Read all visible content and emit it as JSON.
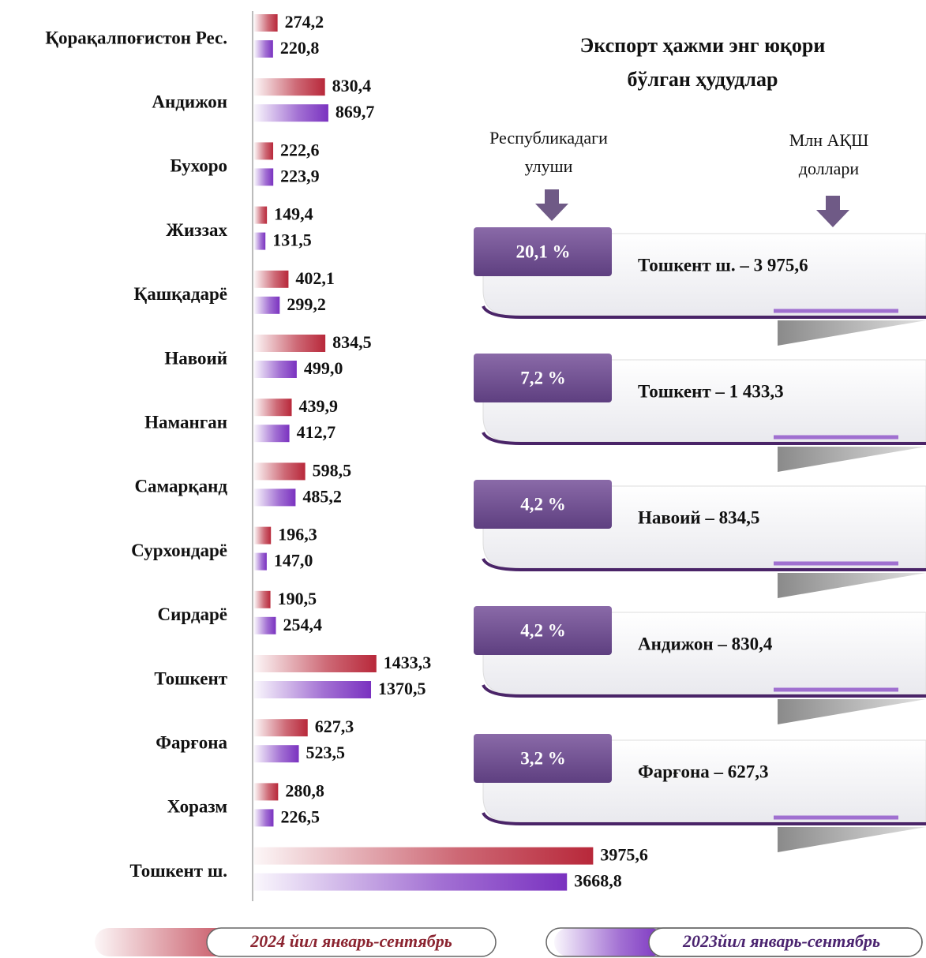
{
  "chart_data": {
    "type": "bar",
    "orientation": "horizontal",
    "categories": [
      "Қорақалпоғистон Рес.",
      "Андижон",
      "Бухоро",
      "Жиззах",
      "Қашқадарё",
      "Навоий",
      "Наманган",
      "Самарқанд",
      "Сурхондарё",
      "Сирдарё",
      "Тошкент",
      "Фарғона",
      "Хоразм",
      "Тошкент ш."
    ],
    "xlim": [
      0,
      4000
    ],
    "series": [
      {
        "name": "2024 йил январь-сентябрь",
        "color": "#b8283a",
        "values": [
          274.2,
          830.4,
          222.6,
          149.4,
          402.1,
          834.5,
          439.9,
          598.5,
          196.3,
          190.5,
          1433.3,
          627.3,
          280.8,
          3975.6
        ],
        "value_labels": [
          "274,2",
          "830,4",
          "222,6",
          "149,4",
          "402,1",
          "834,5",
          "439,9",
          "598,5",
          "196,3",
          "190,5",
          "1433,3",
          "627,3",
          "280,8",
          "3975,6"
        ]
      },
      {
        "name": "2023йил январь-сентябрь",
        "color": "#7a32c0",
        "values": [
          220.8,
          869.7,
          223.9,
          131.5,
          299.2,
          499.0,
          412.7,
          485.2,
          147.0,
          254.4,
          1370.5,
          523.5,
          226.5,
          3668.8
        ],
        "value_labels": [
          "220,8",
          "869,7",
          "223,9",
          "131,5",
          "299,2",
          "499,0",
          "412,7",
          "485,2",
          "147,0",
          "254,4",
          "1370,5",
          "523,5",
          "226,5",
          "3668,8"
        ]
      }
    ]
  },
  "panel": {
    "title": [
      "Экспорт ҳажми энг юқори",
      "бўлган ҳудудлар"
    ],
    "share_header": [
      "Республикадаги",
      "улуши"
    ],
    "unit_header": [
      "Млн АҚШ",
      "доллари"
    ],
    "items": [
      {
        "share": "20,1 %",
        "label": "Тошкент ш. – 3 975,6"
      },
      {
        "share": "7,2 %",
        "label": "Тошкент  – 1 433,3"
      },
      {
        "share": "4,2 %",
        "label": "Навоий – 834,5"
      },
      {
        "share": "4,2 %",
        "label": "Андижон – 830,4"
      },
      {
        "share": "3,2 %",
        "label": "Фарғона – 627,3"
      }
    ]
  }
}
